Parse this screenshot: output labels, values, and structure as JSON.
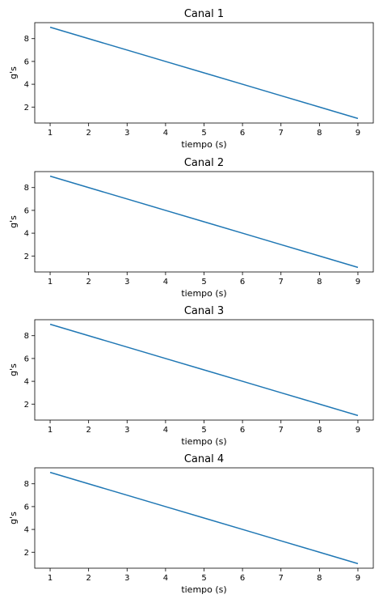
{
  "line_color": "#1f77b4",
  "chart_data": [
    {
      "type": "line",
      "title": "Canal 1",
      "xlabel": "tiempo (s)",
      "ylabel": "g's",
      "x": [
        1,
        2,
        3,
        4,
        5,
        6,
        7,
        8,
        9
      ],
      "series": [
        {
          "values": [
            9,
            8,
            7,
            6,
            5,
            4,
            3,
            2,
            1
          ]
        }
      ],
      "xlim": [
        0.6,
        9.4
      ],
      "ylim": [
        0.6,
        9.4
      ],
      "xticks": [
        "1",
        "2",
        "3",
        "4",
        "5",
        "6",
        "7",
        "8",
        "9"
      ],
      "yticks": [
        "2",
        "4",
        "6",
        "8"
      ],
      "grid": false
    },
    {
      "type": "line",
      "title": "Canal 2",
      "xlabel": "tiempo (s)",
      "ylabel": "g's",
      "x": [
        1,
        2,
        3,
        4,
        5,
        6,
        7,
        8,
        9
      ],
      "series": [
        {
          "values": [
            9,
            8,
            7,
            6,
            5,
            4,
            3,
            2,
            1
          ]
        }
      ],
      "xlim": [
        0.6,
        9.4
      ],
      "ylim": [
        0.6,
        9.4
      ],
      "xticks": [
        "1",
        "2",
        "3",
        "4",
        "5",
        "6",
        "7",
        "8",
        "9"
      ],
      "yticks": [
        "2",
        "4",
        "6",
        "8"
      ],
      "grid": false
    },
    {
      "type": "line",
      "title": "Canal 3",
      "xlabel": "tiempo (s)",
      "ylabel": "g's",
      "x": [
        1,
        2,
        3,
        4,
        5,
        6,
        7,
        8,
        9
      ],
      "series": [
        {
          "values": [
            9,
            8,
            7,
            6,
            5,
            4,
            3,
            2,
            1
          ]
        }
      ],
      "xlim": [
        0.6,
        9.4
      ],
      "ylim": [
        0.6,
        9.4
      ],
      "xticks": [
        "1",
        "2",
        "3",
        "4",
        "5",
        "6",
        "7",
        "8",
        "9"
      ],
      "yticks": [
        "2",
        "4",
        "6",
        "8"
      ],
      "grid": false
    },
    {
      "type": "line",
      "title": "Canal 4",
      "xlabel": "tiempo (s)",
      "ylabel": "g's",
      "x": [
        1,
        2,
        3,
        4,
        5,
        6,
        7,
        8,
        9
      ],
      "series": [
        {
          "values": [
            9,
            8,
            7,
            6,
            5,
            4,
            3,
            2,
            1
          ]
        }
      ],
      "xlim": [
        0.6,
        9.4
      ],
      "ylim": [
        0.6,
        9.4
      ],
      "xticks": [
        "1",
        "2",
        "3",
        "4",
        "5",
        "6",
        "7",
        "8",
        "9"
      ],
      "yticks": [
        "2",
        "4",
        "6",
        "8"
      ],
      "grid": false
    }
  ]
}
